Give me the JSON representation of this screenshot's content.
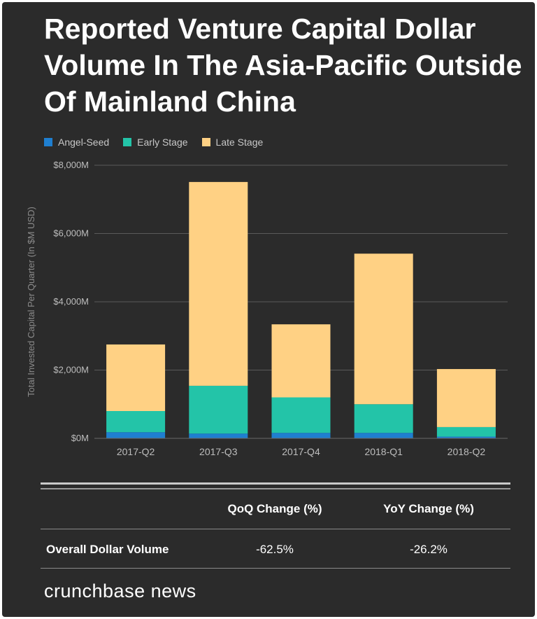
{
  "title": "Reported Venture Capital Dollar Volume In The Asia-Pacific Outside Of Mainland China",
  "colors": {
    "background": "#2b2b2b",
    "angel_seed": "#1f7fd0",
    "early_stage": "#23c4a8",
    "late_stage": "#ffd184",
    "grid": "#5a5a5a",
    "axis_text": "#bdbdbd"
  },
  "chart_data": {
    "type": "bar",
    "stacked": true,
    "categories": [
      "2017-Q2",
      "2017-Q3",
      "2017-Q4",
      "2018-Q1",
      "2018-Q2"
    ],
    "series": [
      {
        "name": "Angel-Seed",
        "values": [
          180,
          140,
          160,
          160,
          50
        ]
      },
      {
        "name": "Early Stage",
        "values": [
          620,
          1400,
          1040,
          840,
          280
        ]
      },
      {
        "name": "Late Stage",
        "values": [
          1950,
          5970,
          2140,
          4410,
          1700
        ]
      }
    ],
    "ylabel": "Total Invested Capital Per Quarter (In $M USD)",
    "xlabel": "",
    "ylim": [
      0,
      8000
    ],
    "yticks": [
      0,
      2000,
      4000,
      6000,
      8000
    ],
    "ytick_labels": [
      "$0M",
      "$2,000M",
      "$4,000M",
      "$6,000M",
      "$8,000M"
    ],
    "grid": true,
    "legend": "top-left"
  },
  "table": {
    "headers": [
      "QoQ Change (%)",
      "YoY Change (%)"
    ],
    "rows": [
      {
        "label": "Overall Dollar Volume",
        "values": [
          "-62.5%",
          "-26.2%"
        ]
      }
    ]
  },
  "brand": "crunchbase news"
}
